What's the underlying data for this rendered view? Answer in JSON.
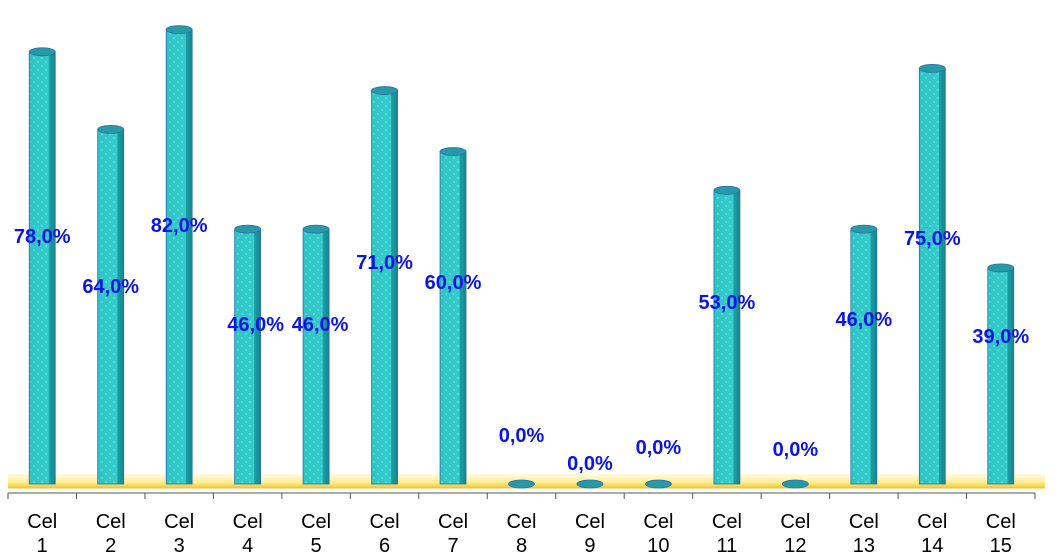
{
  "chart_data": {
    "type": "bar",
    "categories": [
      "Cel 1",
      "Cel 2",
      "Cel 3",
      "Cel 4",
      "Cel 5",
      "Cel 6",
      "Cel 7",
      "Cel 8",
      "Cel 9",
      "Cel 10",
      "Cel 11",
      "Cel 12",
      "Cel 13",
      "Cel 14",
      "Cel 15"
    ],
    "tick_lines": [
      [
        "Cel",
        "1"
      ],
      [
        "Cel",
        "2"
      ],
      [
        "Cel",
        "3"
      ],
      [
        "Cel",
        "4"
      ],
      [
        "Cel",
        "5"
      ],
      [
        "Cel",
        "6"
      ],
      [
        "Cel",
        "7"
      ],
      [
        "Cel",
        "8"
      ],
      [
        "Cel",
        "9"
      ],
      [
        "Cel",
        "10"
      ],
      [
        "Cel",
        "11"
      ],
      [
        "Cel",
        "12"
      ],
      [
        "Cel",
        "13"
      ],
      [
        "Cel",
        "14"
      ],
      [
        "Cel",
        "15"
      ]
    ],
    "values": [
      78,
      64,
      82,
      46,
      46,
      71,
      60,
      0,
      0,
      0,
      53,
      0,
      46,
      75,
      39
    ],
    "data_labels": [
      "78,0%",
      "64,0%",
      "82,0%",
      "46,0%",
      "46,0%",
      "71,0%",
      "60,0%",
      "0,0%",
      "0,0%",
      "0,0%",
      "53,0%",
      "0,0%",
      "46,0%",
      "75,0%",
      "39,0%"
    ],
    "ylim": [
      0,
      85
    ],
    "grid": false,
    "legend": "none",
    "colors": {
      "bar": "#2ec4c4",
      "bar_dark": "#1a8f96",
      "bar_top": "#279aa6",
      "bar_outline": "#2a6fb0",
      "floor": "#fff09a",
      "floor_edge": "#e8c43a",
      "label": "#0a14e6"
    }
  }
}
